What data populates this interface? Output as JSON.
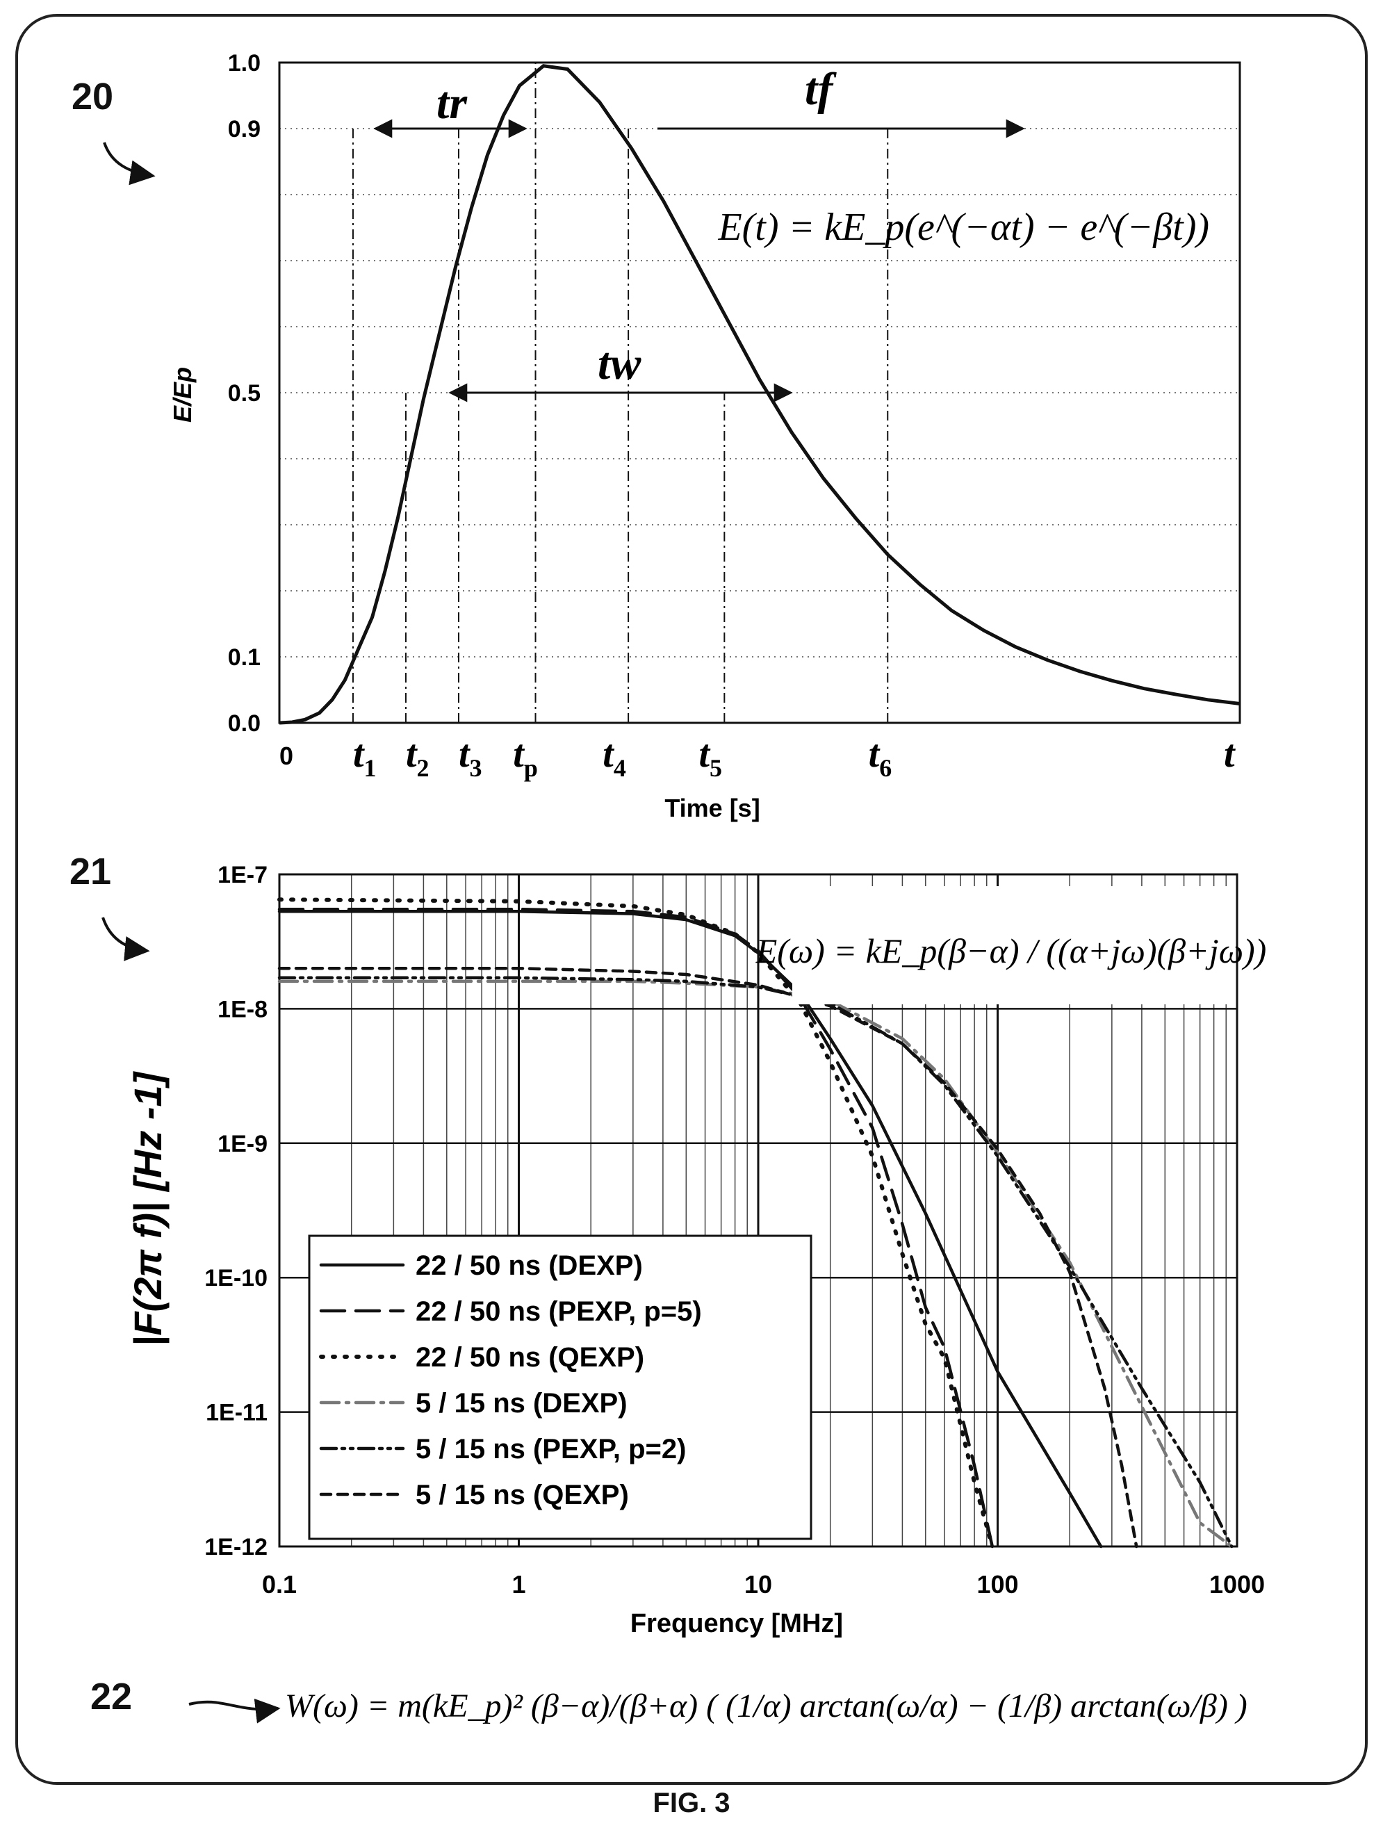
{
  "figure": {
    "caption": "FIG. 3",
    "refs": {
      "top": "20",
      "middle": "21",
      "bottom": "22"
    },
    "formula_W": "W(ω) = m(kE_p)² (β−α)/(β+α) ( (1/α) arctan(ω/α) − (1/β) arctan(ω/β) )"
  },
  "chart_data": [
    {
      "type": "line",
      "ylabel": "E/Ep",
      "xlabel": "Time [s]",
      "ylim": [
        0,
        1.0
      ],
      "y_ticks": [
        "0.0",
        "0.1",
        "0.5",
        "0.9",
        "1.0"
      ],
      "x_tick_labels": [
        "0",
        "t1",
        "t2",
        "t3",
        "tp",
        "t4",
        "t5",
        "t6",
        "t"
      ],
      "x": [
        0,
        0.08,
        0.16,
        0.25,
        0.33,
        0.41,
        0.49,
        0.58,
        0.66,
        0.74,
        0.82,
        0.9,
        1.0,
        1.1,
        1.2,
        1.3,
        1.4,
        1.5,
        1.65,
        1.8,
        2.0,
        2.2,
        2.4,
        2.6,
        2.8,
        3.0,
        3.2,
        3.4,
        3.6,
        3.8,
        4.0,
        4.2,
        4.4,
        4.6,
        4.8,
        5.0,
        5.2,
        5.4,
        5.6,
        5.8,
        6.0
      ],
      "y": [
        0,
        0.001,
        0.005,
        0.015,
        0.035,
        0.065,
        0.11,
        0.16,
        0.23,
        0.31,
        0.4,
        0.49,
        0.59,
        0.69,
        0.78,
        0.86,
        0.92,
        0.965,
        0.995,
        0.99,
        0.94,
        0.87,
        0.79,
        0.7,
        0.61,
        0.52,
        0.44,
        0.37,
        0.31,
        0.255,
        0.21,
        0.17,
        0.14,
        0.115,
        0.095,
        0.078,
        0.064,
        0.052,
        0.043,
        0.035,
        0.029
      ],
      "annotations": {
        "tr": "tr",
        "tf": "tf",
        "tw": "tw",
        "equation": "E(t) = kE_p(e^(−αt) − e^(−βt))"
      }
    },
    {
      "type": "line",
      "ylabel": "|F(2π f)|  [Hz -1]",
      "xlabel": "Frequency  [MHz]",
      "xscale": "log",
      "yscale": "log",
      "xlim": [
        0.1,
        1000
      ],
      "ylim": [
        1e-12,
        1e-07
      ],
      "x_ticks": [
        "0.1",
        "1",
        "10",
        "100",
        "1000"
      ],
      "y_ticks": [
        "1E-12",
        "1E-11",
        "1E-10",
        "1E-9",
        "1E-8",
        "1E-7"
      ],
      "equation": "E(ω) = kE_p(β−α) / ((α+jω)(β+jω))",
      "legend": "bottom-left",
      "series": [
        {
          "name": "22 / 50 ns (DEXP)",
          "color": "#111111",
          "dash": "solid",
          "x": [
            0.1,
            1,
            3,
            5,
            8,
            10,
            15,
            20,
            30,
            50,
            100,
            200,
            270
          ],
          "y": [
            5.3e-08,
            5.3e-08,
            5.1e-08,
            4.6e-08,
            3.5e-08,
            2.6e-08,
            1.3e-08,
            6e-09,
            1.9e-09,
            3e-10,
            2e-11,
            2.5e-12,
            1e-12
          ]
        },
        {
          "name": "22 / 50 ns (PEXP, p=5)",
          "color": "#111111",
          "dash": "long",
          "x": [
            0.1,
            1,
            3,
            5,
            8,
            10,
            15,
            20,
            30,
            40,
            50,
            60,
            80,
            95
          ],
          "y": [
            5.5e-08,
            5.5e-08,
            5.3e-08,
            4.8e-08,
            3.6e-08,
            2.7e-08,
            1.2e-08,
            5e-09,
            1.3e-09,
            2.5e-10,
            6e-11,
            3e-11,
            4e-12,
            1e-12
          ]
        },
        {
          "name": "22 / 50 ns (QEXP)",
          "color": "#111111",
          "dash": "dot",
          "x": [
            0.1,
            1,
            3,
            5,
            8,
            10,
            15,
            20,
            30,
            40,
            50,
            60,
            80,
            95
          ],
          "y": [
            6.5e-08,
            6.3e-08,
            5.8e-08,
            5e-08,
            3.6e-08,
            2.6e-08,
            1.1e-08,
            4e-09,
            8e-10,
            1.5e-10,
            4.5e-11,
            2.5e-11,
            3e-12,
            1e-12
          ]
        },
        {
          "name": "5 / 15 ns (DEXP)",
          "color": "#777777",
          "dash": "dashdot",
          "x": [
            0.1,
            1,
            3,
            5,
            10,
            20,
            40,
            60,
            100,
            200,
            400,
            700,
            950
          ],
          "y": [
            1.6e-08,
            1.6e-08,
            1.6e-08,
            1.55e-08,
            1.45e-08,
            1.15e-08,
            6e-09,
            3e-09,
            8.5e-10,
            1.3e-10,
            1.1e-11,
            1.5e-12,
            1e-12
          ]
        },
        {
          "name": "5 / 15 ns (PEXP, p=2)",
          "color": "#111111",
          "dash": "dashdotdot",
          "x": [
            0.1,
            1,
            3,
            5,
            10,
            20,
            40,
            60,
            100,
            200,
            400,
            700,
            950
          ],
          "y": [
            1.7e-08,
            1.7e-08,
            1.65e-08,
            1.6e-08,
            1.45e-08,
            1.1e-08,
            5.5e-09,
            2.7e-09,
            8e-10,
            1.2e-10,
            1.5e-11,
            3e-12,
            1e-12
          ]
        },
        {
          "name": "5 / 15 ns (QEXP)",
          "color": "#111111",
          "dash": "dash",
          "x": [
            0.1,
            1,
            3,
            5,
            10,
            20,
            40,
            60,
            100,
            150,
            200,
            280,
            330,
            380
          ],
          "y": [
            2e-08,
            2e-08,
            1.9e-08,
            1.8e-08,
            1.5e-08,
            1.05e-08,
            5.5e-09,
            2.8e-09,
            9e-10,
            3e-10,
            1.1e-10,
            1.5e-11,
            4e-12,
            1e-12
          ]
        }
      ]
    }
  ]
}
